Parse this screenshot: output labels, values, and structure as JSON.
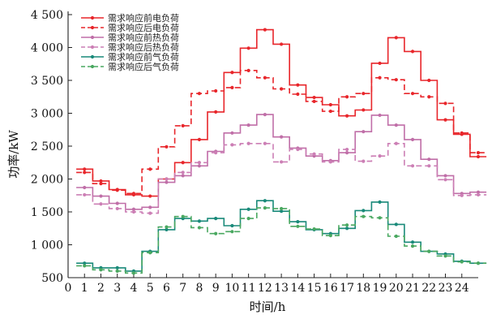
{
  "chart_data": {
    "type": "line",
    "xlabel": "时间/h",
    "ylabel": "功率/kW",
    "x": [
      0,
      1,
      2,
      3,
      4,
      5,
      6,
      7,
      8,
      9,
      10,
      11,
      12,
      13,
      14,
      15,
      16,
      17,
      18,
      19,
      20,
      21,
      22,
      23,
      24
    ],
    "xlim": [
      0,
      25
    ],
    "ylim": [
      500,
      4500
    ],
    "yticks": [
      500,
      1000,
      1500,
      2000,
      2500,
      3000,
      3500,
      4000,
      4500
    ],
    "ytick_labels": [
      "500",
      "1 000",
      "1 500",
      "2 000",
      "2 500",
      "3 000",
      "3 500",
      "4 000",
      "4 500"
    ],
    "grid": false,
    "legend_position": "top-left",
    "series": [
      {
        "name": "需求响应前电负荷",
        "color": "#e8262b",
        "dash": "solid",
        "marker": "dot",
        "values": [
          2150,
          1970,
          1840,
          1760,
          1740,
          2000,
          2250,
          2600,
          3020,
          3620,
          3990,
          4270,
          4050,
          3430,
          3240,
          3130,
          2960,
          3050,
          3760,
          4150,
          3940,
          3500,
          2900,
          2680,
          2340
        ]
      },
      {
        "name": "需求响应后电负荷",
        "color": "#e8262b",
        "dash": "dashed",
        "marker": "dot",
        "values": [
          2100,
          1930,
          1830,
          1780,
          2150,
          2490,
          2810,
          3300,
          3340,
          3390,
          3650,
          3540,
          3370,
          3290,
          3180,
          3030,
          3250,
          3300,
          3540,
          3510,
          3300,
          3250,
          3150,
          2700,
          2400
        ]
      },
      {
        "name": "需求响应前热负荷",
        "color": "#c06fa8",
        "dash": "solid",
        "marker": "dot",
        "values": [
          1870,
          1740,
          1630,
          1540,
          1570,
          1950,
          2050,
          2200,
          2420,
          2700,
          2820,
          2980,
          2640,
          2470,
          2350,
          2280,
          2400,
          2720,
          2970,
          2820,
          2600,
          2300,
          2050,
          1780,
          1800
        ]
      },
      {
        "name": "需求响应后热负荷",
        "color": "#cc7fb5",
        "dash": "dashed",
        "marker": "dot",
        "values": [
          1760,
          1620,
          1550,
          1500,
          1480,
          2000,
          2100,
          2250,
          2400,
          2520,
          2540,
          2540,
          2260,
          2450,
          2380,
          2260,
          2450,
          2270,
          2350,
          2540,
          2200,
          2200,
          1990,
          1750,
          1760
        ]
      },
      {
        "name": "需求响应前气负荷",
        "color": "#1a8a7a",
        "dash": "solid",
        "marker": "dot",
        "values": [
          720,
          650,
          650,
          600,
          900,
          1230,
          1400,
          1360,
          1400,
          1290,
          1540,
          1670,
          1510,
          1350,
          1230,
          1170,
          1250,
          1520,
          1650,
          1310,
          1040,
          900,
          860,
          750,
          720
        ]
      },
      {
        "name": "需求响应后气负荷",
        "color": "#4aa860",
        "dash": "dashed",
        "marker": "dot",
        "values": [
          680,
          620,
          600,
          570,
          880,
          1270,
          1430,
          1260,
          1170,
          1200,
          1400,
          1560,
          1550,
          1280,
          1240,
          1140,
          1300,
          1430,
          1410,
          1130,
          980,
          900,
          830,
          740,
          720
        ]
      }
    ]
  }
}
